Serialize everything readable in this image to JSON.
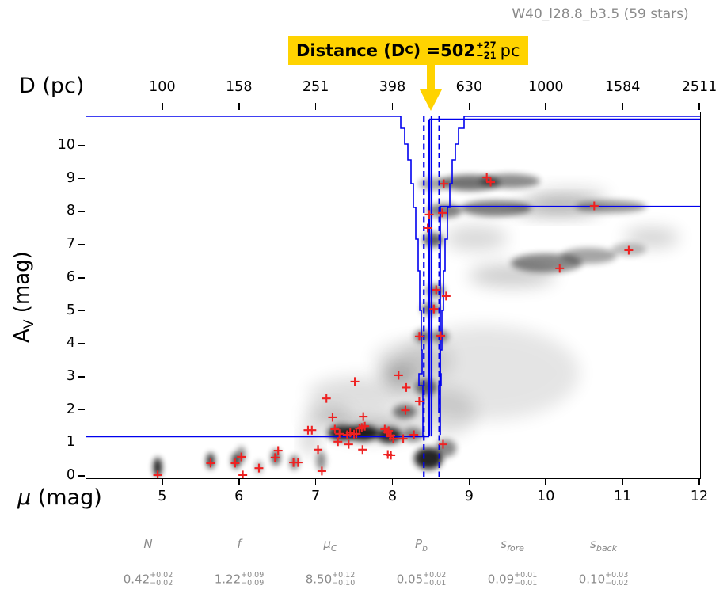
{
  "title": "W40_l28.8_b3.5 (59 stars)",
  "annotation": {
    "prefix": "Distance (D",
    "prefix_sub": "C",
    "equals": ") = ",
    "value": "502",
    "err_plus": "+27",
    "err_minus": "−21",
    "unit": "pc",
    "bg_color": "#ffd300"
  },
  "axes": {
    "top": {
      "label_main": "D (pc)",
      "ticks": [
        "100",
        "158",
        "251",
        "398",
        "630",
        "1000",
        "1584",
        "2511"
      ]
    },
    "bottom": {
      "label_mu": "μ",
      "label_rest": " (mag)",
      "ticks": [
        "5",
        "6",
        "7",
        "8",
        "9",
        "10",
        "11",
        "12"
      ]
    },
    "left": {
      "label_prefix": "A",
      "label_sub": "V",
      "label_suffix": " (mag)",
      "ticks": [
        "0",
        "1",
        "2",
        "3",
        "4",
        "5",
        "6",
        "7",
        "8",
        "9",
        "10"
      ]
    }
  },
  "parameters": [
    {
      "sym": "N",
      "sub": "",
      "value": "0.42",
      "plus": "+0.02",
      "minus": "−0.02"
    },
    {
      "sym": "f",
      "sub": "",
      "value": "1.22",
      "plus": "+0.09",
      "minus": "−0.09"
    },
    {
      "sym": "μ",
      "sub": "C",
      "value": "8.50",
      "plus": "+0.12",
      "minus": "−0.10"
    },
    {
      "sym": "P",
      "sub": "b",
      "value": "0.05",
      "plus": "+0.02",
      "minus": "−0.01"
    },
    {
      "sym": "s",
      "sub": "fore",
      "value": "0.09",
      "plus": "+0.01",
      "minus": "−0.01"
    },
    {
      "sym": "s",
      "sub": "back",
      "value": "0.10",
      "plus": "+0.03",
      "minus": "−0.02"
    }
  ],
  "chart_data": {
    "type": "scatter",
    "title": "W40_l28.8_b3.5 (59 stars)",
    "xlabel": "μ (mag)",
    "x2label": "D (pc)",
    "ylabel": "A_V (mag)",
    "xlim": [
      4.0,
      12.0
    ],
    "ylim": [
      -0.05,
      11.03
    ],
    "x_ticks_mu": [
      5,
      6,
      7,
      8,
      9,
      10,
      11,
      12
    ],
    "x2_ticks_pc": [
      100,
      158,
      251,
      398,
      630,
      1000,
      1584,
      2511
    ],
    "y_ticks_av": [
      0,
      1,
      2,
      3,
      4,
      5,
      6,
      7,
      8,
      9,
      10
    ],
    "stars_mu_av": [
      [
        4.93,
        0.05
      ],
      [
        5.62,
        0.41
      ],
      [
        5.94,
        0.41
      ],
      [
        6.02,
        0.6
      ],
      [
        6.04,
        0.05
      ],
      [
        6.25,
        0.26
      ],
      [
        6.46,
        0.58
      ],
      [
        6.5,
        0.79
      ],
      [
        6.7,
        0.43
      ],
      [
        6.76,
        0.43
      ],
      [
        6.89,
        1.41
      ],
      [
        6.94,
        1.41
      ],
      [
        7.02,
        0.82
      ],
      [
        7.07,
        0.17
      ],
      [
        7.13,
        2.37
      ],
      [
        7.21,
        1.8
      ],
      [
        7.24,
        1.44
      ],
      [
        7.28,
        1.06
      ],
      [
        7.3,
        1.3
      ],
      [
        7.4,
        1.27
      ],
      [
        7.42,
        0.98
      ],
      [
        7.44,
        1.33
      ],
      [
        7.49,
        1.29
      ],
      [
        7.5,
        2.88
      ],
      [
        7.52,
        1.3
      ],
      [
        7.56,
        1.46
      ],
      [
        7.59,
        1.49
      ],
      [
        7.6,
        0.82
      ],
      [
        7.61,
        1.82
      ],
      [
        7.63,
        1.53
      ],
      [
        7.89,
        1.44
      ],
      [
        7.92,
        1.35
      ],
      [
        7.93,
        0.67
      ],
      [
        7.94,
        1.39
      ],
      [
        7.96,
        1.22
      ],
      [
        7.97,
        0.65
      ],
      [
        7.97,
        1.25
      ],
      [
        8.0,
        1.15
      ],
      [
        8.07,
        3.07
      ],
      [
        8.13,
        1.15
      ],
      [
        8.16,
        2.01
      ],
      [
        8.17,
        2.7
      ],
      [
        8.27,
        1.27
      ],
      [
        8.34,
        2.28
      ],
      [
        8.34,
        4.25
      ],
      [
        8.45,
        7.53
      ],
      [
        8.47,
        7.94
      ],
      [
        8.53,
        5.08
      ],
      [
        8.56,
        5.66
      ],
      [
        8.62,
        4.27
      ],
      [
        8.64,
        7.99
      ],
      [
        8.65,
        0.98
      ],
      [
        8.66,
        8.87
      ],
      [
        8.69,
        5.47
      ],
      [
        9.22,
        9.06
      ],
      [
        9.27,
        8.92
      ],
      [
        10.17,
        6.31
      ],
      [
        10.62,
        8.2
      ],
      [
        11.07,
        6.86
      ]
    ],
    "model": {
      "foreground_av": 1.22,
      "jump_mu": 8.47,
      "background_upper_av": 10.82,
      "background_lower_av": 8.18,
      "background_lower_start_mu": 8.6,
      "pdf_baseline_av": 10.92,
      "median_mu": 8.5,
      "ci_mu": [
        8.4,
        8.6
      ],
      "distance_pc": 502,
      "distance_err_plus_pc": 27,
      "distance_err_minus_pc": 21
    },
    "density_blobs": [
      {
        "mu": 4.93,
        "av": 0.29,
        "rx": 5,
        "ry": 12,
        "o": 0.95,
        "soft": false
      },
      {
        "mu": 5.62,
        "av": 0.48,
        "rx": 5,
        "ry": 10,
        "o": 0.85,
        "soft": false
      },
      {
        "mu": 5.95,
        "av": 0.48,
        "rx": 5,
        "ry": 10,
        "o": 0.8,
        "soft": false
      },
      {
        "mu": 6.02,
        "av": 0.67,
        "rx": 5,
        "ry": 10,
        "o": 0.5,
        "soft": false
      },
      {
        "mu": 6.25,
        "av": 0.29,
        "rx": 4,
        "ry": 8,
        "o": 0.4,
        "soft": false
      },
      {
        "mu": 6.47,
        "av": 0.58,
        "rx": 5,
        "ry": 10,
        "o": 0.75,
        "soft": false
      },
      {
        "mu": 6.71,
        "av": 0.43,
        "rx": 5,
        "ry": 9,
        "o": 0.6,
        "soft": false
      },
      {
        "mu": 7.06,
        "av": 0.48,
        "rx": 6,
        "ry": 12,
        "o": 0.45,
        "soft": false
      },
      {
        "mu": 6.92,
        "av": 1.1,
        "rx": 8,
        "ry": 18,
        "o": 0.25,
        "soft": true
      },
      {
        "mu": 7.33,
        "av": 1.32,
        "rx": 18,
        "ry": 10,
        "o": 0.8,
        "soft": false
      },
      {
        "mu": 7.61,
        "av": 1.32,
        "rx": 20,
        "ry": 10,
        "o": 0.85,
        "soft": false
      },
      {
        "mu": 7.95,
        "av": 1.25,
        "rx": 16,
        "ry": 10,
        "o": 0.8,
        "soft": false
      },
      {
        "mu": 8.26,
        "av": 1.27,
        "rx": 13,
        "ry": 9,
        "o": 0.45,
        "soft": false
      },
      {
        "mu": 8.46,
        "av": 0.55,
        "rx": 18,
        "ry": 14,
        "o": 0.85,
        "soft": false
      },
      {
        "mu": 8.69,
        "av": 0.86,
        "rx": 13,
        "ry": 11,
        "o": 0.45,
        "soft": false
      },
      {
        "mu": 7.74,
        "av": 1.51,
        "rx": 55,
        "ry": 14,
        "o": 0.25,
        "soft": true
      },
      {
        "mu": 7.14,
        "av": 1.85,
        "rx": 28,
        "ry": 11,
        "o": 0.25,
        "soft": true
      },
      {
        "mu": 8.15,
        "av": 1.97,
        "rx": 15,
        "ry": 9,
        "o": 0.5,
        "soft": false
      },
      {
        "mu": 7.56,
        "av": 2.49,
        "rx": 65,
        "ry": 22,
        "o": 0.13,
        "soft": true
      },
      {
        "mu": 8.43,
        "av": 2.71,
        "rx": 14,
        "ry": 10,
        "o": 0.55,
        "soft": false
      },
      {
        "mu": 8.07,
        "av": 3.09,
        "rx": 22,
        "ry": 11,
        "o": 0.25,
        "soft": true
      },
      {
        "mu": 8.39,
        "av": 4.25,
        "rx": 11,
        "ry": 8,
        "o": 0.5,
        "soft": false
      },
      {
        "mu": 8.61,
        "av": 4.25,
        "rx": 11,
        "ry": 8,
        "o": 0.45,
        "soft": false
      },
      {
        "mu": 8.49,
        "av": 5.08,
        "rx": 12,
        "ry": 8,
        "o": 0.55,
        "soft": false
      },
      {
        "mu": 8.55,
        "av": 5.63,
        "rx": 12,
        "ry": 8,
        "o": 0.5,
        "soft": false
      },
      {
        "mu": 8.52,
        "av": 7.17,
        "rx": 13,
        "ry": 9,
        "o": 0.6,
        "soft": false
      },
      {
        "mu": 8.67,
        "av": 8.06,
        "rx": 22,
        "ry": 9,
        "o": 0.5,
        "soft": false
      },
      {
        "mu": 9.34,
        "av": 8.13,
        "rx": 45,
        "ry": 10,
        "o": 0.5,
        "soft": false
      },
      {
        "mu": 10.14,
        "av": 8.15,
        "rx": 55,
        "ry": 9,
        "o": 0.35,
        "soft": true
      },
      {
        "mu": 10.84,
        "av": 8.18,
        "rx": 45,
        "ry": 8,
        "o": 0.4,
        "soft": false
      },
      {
        "mu": 9.0,
        "av": 8.9,
        "rx": 38,
        "ry": 10,
        "o": 0.55,
        "soft": false
      },
      {
        "mu": 9.52,
        "av": 8.95,
        "rx": 38,
        "ry": 9,
        "o": 0.45,
        "soft": false
      },
      {
        "mu": 8.52,
        "av": 8.87,
        "rx": 18,
        "ry": 8,
        "o": 0.35,
        "soft": false
      },
      {
        "mu": 10.0,
        "av": 6.47,
        "rx": 45,
        "ry": 12,
        "o": 0.45,
        "soft": false
      },
      {
        "mu": 10.55,
        "av": 6.69,
        "rx": 35,
        "ry": 10,
        "o": 0.35,
        "soft": false
      },
      {
        "mu": 9.55,
        "av": 6.09,
        "rx": 55,
        "ry": 14,
        "o": 0.2,
        "soft": true
      },
      {
        "mu": 11.07,
        "av": 6.88,
        "rx": 22,
        "ry": 8,
        "o": 0.25,
        "soft": false
      },
      {
        "mu": 11.37,
        "av": 7.24,
        "rx": 35,
        "ry": 12,
        "o": 0.18,
        "soft": true
      },
      {
        "mu": 9.08,
        "av": 7.22,
        "rx": 40,
        "ry": 16,
        "o": 0.15,
        "soft": true
      },
      {
        "mu": 10.3,
        "av": 8.5,
        "rx": 50,
        "ry": 10,
        "o": 0.15,
        "soft": true
      },
      {
        "mu": 9.19,
        "av": 3.14,
        "rx": 120,
        "ry": 60,
        "o": 0.1,
        "soft": true
      },
      {
        "mu": 8.26,
        "av": 3.5,
        "rx": 50,
        "ry": 25,
        "o": 0.12,
        "soft": true
      },
      {
        "mu": 8.67,
        "av": 1.94,
        "rx": 40,
        "ry": 30,
        "o": 0.12,
        "soft": true
      }
    ],
    "colors": {
      "model_line": "#0000ee",
      "star_marker": "#ee2222",
      "annotation_bg": "#ffd300",
      "density": "#000000",
      "secondary_text": "#8a8a8a"
    },
    "legend": null,
    "grid": false
  }
}
